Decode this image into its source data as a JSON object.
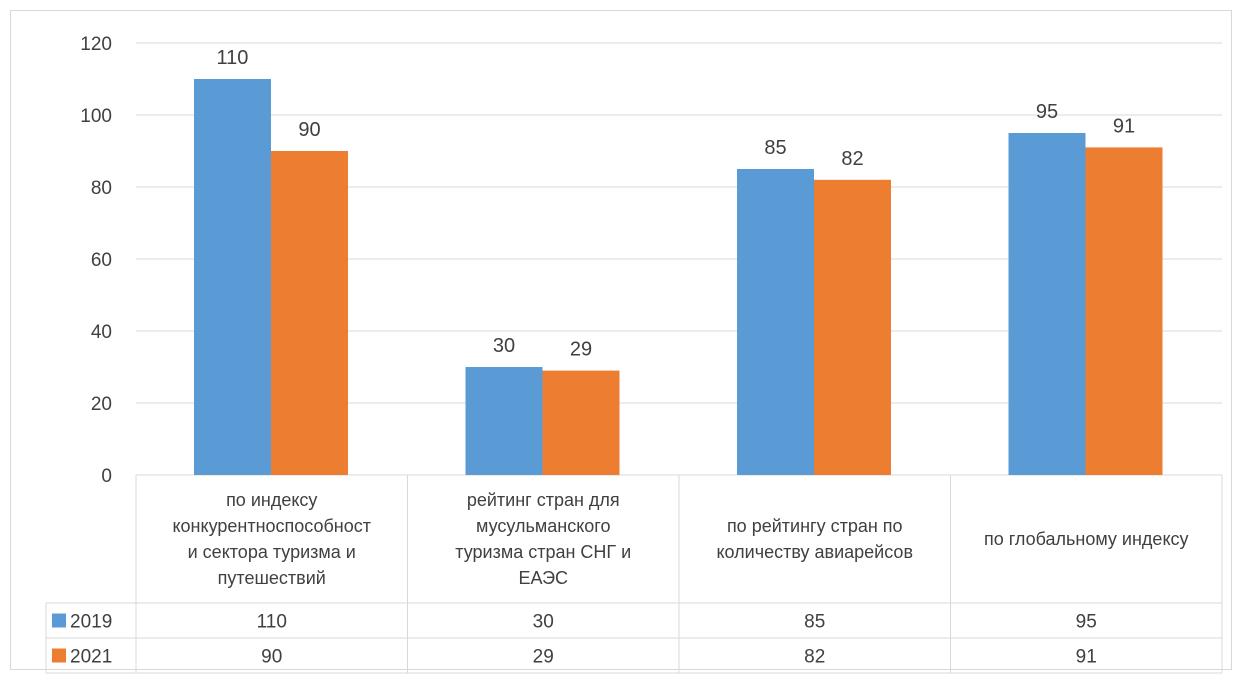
{
  "chart_data": {
    "type": "bar",
    "title": "",
    "xlabel": "",
    "ylabel": "",
    "ylim": [
      0,
      120
    ],
    "y_ticks": [
      "0",
      "20",
      "40",
      "60",
      "80",
      "100",
      "120"
    ],
    "grid": true,
    "legend": "data-table",
    "categories": [
      [
        "по индексу",
        "конкурентноспособност",
        "и сектора туризма и",
        "путешествий"
      ],
      [
        "рейтинг стран для",
        "мусульманского",
        "туризма стран СНГ и",
        "ЕАЭС"
      ],
      [
        "по рейтингу стран по",
        "количеству авиарейсов"
      ],
      [
        "по глобальному индексу"
      ]
    ],
    "series": [
      {
        "name": "2019",
        "color": "#5b9bd5",
        "values": [
          110,
          30,
          85,
          95
        ]
      },
      {
        "name": "2021",
        "color": "#ed7d31",
        "values": [
          90,
          29,
          82,
          91
        ]
      }
    ]
  }
}
